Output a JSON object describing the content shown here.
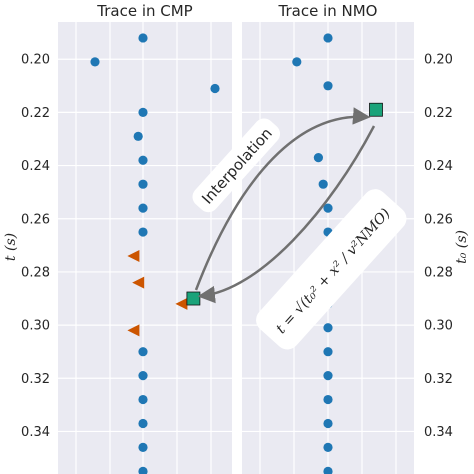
{
  "panels": {
    "left_title": "Trace in CMP",
    "right_title": "Trace in NMO"
  },
  "axes": {
    "left_ylabel": "t (s)",
    "right_ylabel": "t₀ (s)",
    "ylim": [
      0.186,
      0.356
    ],
    "yticks": [
      "0.20",
      "0.22",
      "0.24",
      "0.26",
      "0.28",
      "0.30",
      "0.32",
      "0.34"
    ],
    "ytick_values": [
      0.2,
      0.22,
      0.24,
      0.26,
      0.28,
      0.3,
      0.32,
      0.34
    ]
  },
  "annotations": {
    "interpolation": "Interpolation",
    "formula": "t = √(t₀² + x² / v²NMO)"
  },
  "colors": {
    "panel_bg": "#eaeaf2",
    "grid": "#ffffff",
    "dot": "#1f77b4",
    "triangle": "#cc5500",
    "square": "#1aa37a",
    "arrow": "#707070"
  },
  "chart_data": [
    {
      "type": "scatter",
      "title": "Trace in CMP",
      "ylabel": "t (s)",
      "ylim": [
        0.186,
        0.356
      ],
      "grid": true,
      "series": [
        {
          "name": "",
          "marker": "circle",
          "points": [
            {
              "x": 0.0,
              "t": 0.192
            },
            {
              "x": -2.0,
              "t": 0.201
            },
            {
              "x": 3.0,
              "t": 0.211
            },
            {
              "x": 0.0,
              "t": 0.22
            },
            {
              "x": -0.2,
              "t": 0.229
            },
            {
              "x": 0.0,
              "t": 0.238
            },
            {
              "x": 0.0,
              "t": 0.247
            },
            {
              "x": 0.0,
              "t": 0.256
            },
            {
              "x": 0.0,
              "t": 0.265
            },
            {
              "x": 0.0,
              "t": 0.31
            },
            {
              "x": 0.0,
              "t": 0.319
            },
            {
              "x": 0.0,
              "t": 0.328
            },
            {
              "x": 0.0,
              "t": 0.337
            },
            {
              "x": 0.0,
              "t": 0.346
            },
            {
              "x": 0.0,
              "t": 0.355
            }
          ]
        },
        {
          "name": "",
          "marker": "triangle",
          "points": [
            {
              "x": -0.4,
              "t": 0.274
            },
            {
              "x": -0.2,
              "t": 0.284
            },
            {
              "x": -0.4,
              "t": 0.302
            },
            {
              "x": 1.6,
              "t": 0.292
            }
          ]
        },
        {
          "name": "",
          "marker": "square",
          "points": [
            {
              "x": 2.1,
              "t": 0.29
            }
          ]
        }
      ]
    },
    {
      "type": "scatter",
      "title": "Trace in NMO",
      "ylabel": "t₀ (s)",
      "ylim": [
        0.186,
        0.356
      ],
      "grid": true,
      "series": [
        {
          "name": "",
          "marker": "circle",
          "points": [
            {
              "x": 0.0,
              "t": 0.192
            },
            {
              "x": -1.3,
              "t": 0.201
            },
            {
              "x": 0.0,
              "t": 0.21
            },
            {
              "x": -0.4,
              "t": 0.237
            },
            {
              "x": -0.2,
              "t": 0.247
            },
            {
              "x": 0.0,
              "t": 0.256
            },
            {
              "x": 0.0,
              "t": 0.265
            },
            {
              "x": 0.0,
              "t": 0.292
            },
            {
              "x": 0.0,
              "t": 0.301
            },
            {
              "x": 0.0,
              "t": 0.31
            },
            {
              "x": 0.0,
              "t": 0.319
            },
            {
              "x": 0.0,
              "t": 0.328
            },
            {
              "x": 0.0,
              "t": 0.337
            },
            {
              "x": 0.0,
              "t": 0.346
            },
            {
              "x": 0.0,
              "t": 0.355
            }
          ]
        },
        {
          "name": "",
          "marker": "square",
          "points": [
            {
              "x": 2.0,
              "t": 0.219
            }
          ]
        }
      ]
    }
  ]
}
